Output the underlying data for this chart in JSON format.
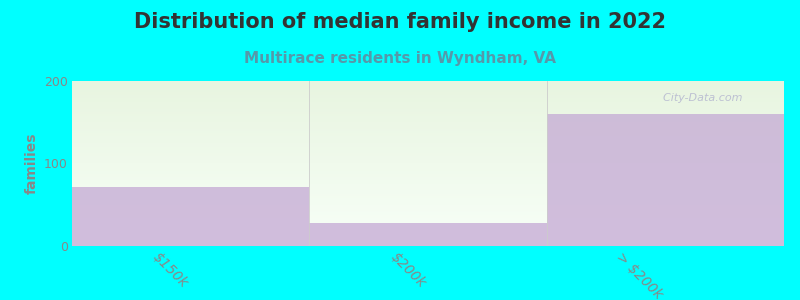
{
  "title": "Distribution of median family income in 2022",
  "subtitle": "Multirace residents in Wyndham, VA",
  "categories": [
    "$150k",
    "$200k",
    "> $200k"
  ],
  "bar_values": [
    72,
    28,
    160
  ],
  "bar_color": "#c4a8d4",
  "bg_color": "#00ffff",
  "plot_bg_top": "#e8f5e0",
  "plot_bg_bottom": "#f8fff8",
  "ylabel": "families",
  "ylim": [
    0,
    200
  ],
  "yticks": [
    0,
    100,
    200
  ],
  "title_color": "#333333",
  "subtitle_color": "#5599aa",
  "tick_color": "#888888",
  "watermark": "  City-Data.com",
  "bar_width": 1.0,
  "bar_alpha": 0.75,
  "title_fontsize": 15,
  "subtitle_fontsize": 11
}
